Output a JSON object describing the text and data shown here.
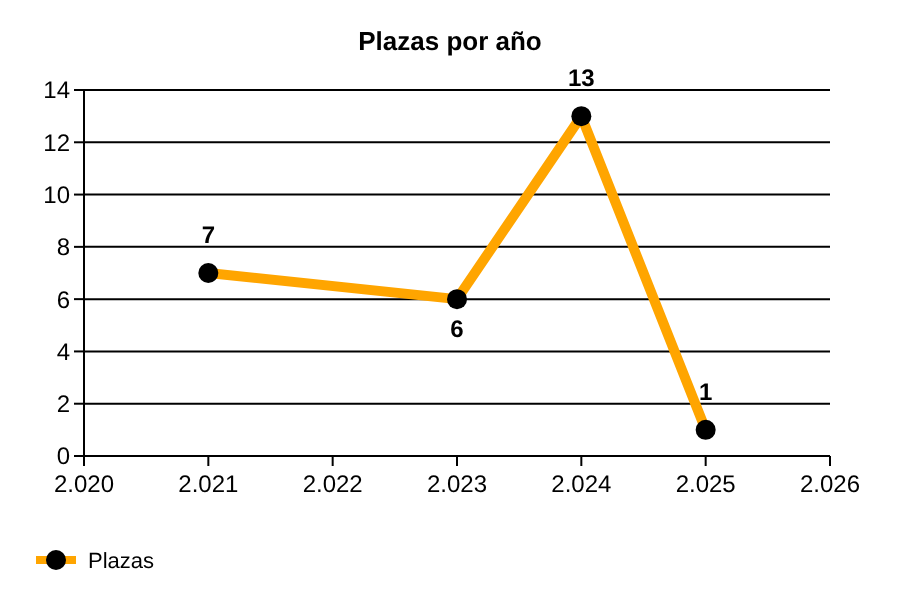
{
  "chart_data": {
    "type": "line",
    "title": "Plazas por año",
    "x": [
      2021,
      2023,
      2024,
      2025
    ],
    "series": [
      {
        "name": "Plazas",
        "color": "#ffa500",
        "values": [
          7,
          6,
          13,
          1
        ]
      }
    ],
    "xlim": [
      2020,
      2026
    ],
    "xticks": [
      {
        "value": 2020,
        "label": "2.020"
      },
      {
        "value": 2021,
        "label": "2.021"
      },
      {
        "value": 2022,
        "label": "2.022"
      },
      {
        "value": 2023,
        "label": "2.023"
      },
      {
        "value": 2024,
        "label": "2.024"
      },
      {
        "value": 2025,
        "label": "2.025"
      },
      {
        "value": 2026,
        "label": "2.026"
      }
    ],
    "ylim": [
      0,
      14
    ],
    "yticks": [
      0,
      2,
      4,
      6,
      8,
      10,
      12,
      14
    ],
    "grid": "y",
    "legend": "bottom left",
    "marker": "circle",
    "line_style": "solid",
    "data_labels": true
  }
}
